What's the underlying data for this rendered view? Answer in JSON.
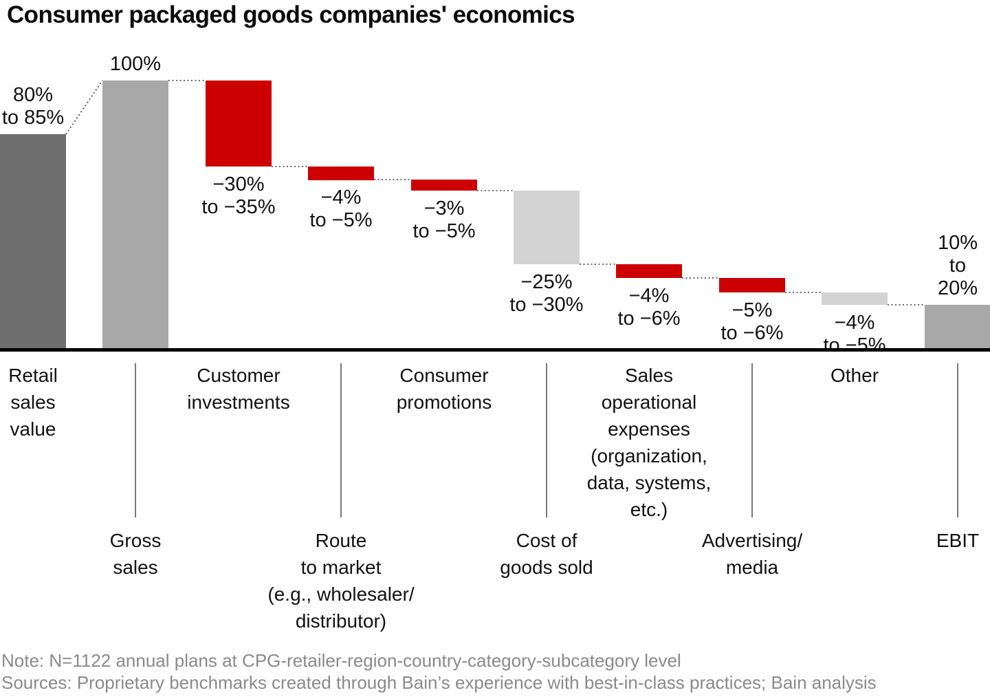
{
  "title": "Consumer packaged goods companies' economics",
  "footer": {
    "note": "Note: N=1122 annual plans at CPG-retailer-region-country-category-subcategory level",
    "sources": "Sources: Proprietary benchmarks created through Bain’s experience with best-in-class practices; Bain analysis"
  },
  "colors": {
    "red": "#cc0000",
    "dark_gray": "#6e6e6e",
    "mid_gray": "#a8a8a8",
    "light_gray": "#d3d3d3",
    "axis": "#000000",
    "tick": "#4d4d4d",
    "connector": "#3a3a3a",
    "note_text": "#8a8a8a",
    "label_text": "#121212"
  },
  "chart_data": {
    "type": "bar",
    "subtype": "waterfall",
    "unit": "% of gross sales",
    "ylim": [
      0,
      100
    ],
    "grid": false,
    "legend": false,
    "title": "Consumer packaged goods companies' economics",
    "bars": [
      {
        "axis_label": "Retail sales value",
        "axis_lines": [
          "Retail",
          "sales",
          "value"
        ],
        "label_row": 1,
        "tick": false,
        "value_label_lines": [
          "80%",
          "to 85%"
        ],
        "value_label_pos": "above",
        "range_text": "80% to 85%",
        "from": 0,
        "to": 80,
        "color_key": "dark_gray"
      },
      {
        "axis_label": "Gross sales",
        "axis_lines": [
          "Gross",
          "sales"
        ],
        "label_row": 2,
        "tick": true,
        "value_label_lines": [
          "100%"
        ],
        "value_label_pos": "above",
        "range_text": "100%",
        "from": 0,
        "to": 100,
        "color_key": "mid_gray"
      },
      {
        "axis_label": "Customer investments",
        "axis_lines": [
          "Customer",
          "investments"
        ],
        "label_row": 1,
        "tick": false,
        "value_label_lines": [
          "−30%",
          "to −35%"
        ],
        "value_label_pos": "below",
        "range_text": "−30% to −35%",
        "from": 100,
        "to": 68,
        "color_key": "red"
      },
      {
        "axis_label": "Route to market (e.g., wholesaler/distributor)",
        "axis_lines": [
          "Route",
          "to market",
          "(e.g., wholesaler/",
          "distributor)"
        ],
        "label_row": 2,
        "tick": true,
        "value_label_lines": [
          "−4%",
          "to −5%"
        ],
        "value_label_pos": "below",
        "range_text": "−4% to −5%",
        "from": 68,
        "to": 63,
        "color_key": "red"
      },
      {
        "axis_label": "Consumer promotions",
        "axis_lines": [
          "Consumer",
          "promotions"
        ],
        "label_row": 1,
        "tick": false,
        "value_label_lines": [
          "−3%",
          "to −5%"
        ],
        "value_label_pos": "below",
        "range_text": "−3% to −5%",
        "from": 63,
        "to": 59,
        "color_key": "red"
      },
      {
        "axis_label": "Cost of goods sold",
        "axis_lines": [
          "Cost of",
          "goods sold"
        ],
        "label_row": 2,
        "tick": true,
        "value_label_lines": [
          "−25%",
          "to −30%"
        ],
        "value_label_pos": "below",
        "range_text": "−25% to −30%",
        "from": 59,
        "to": 31.5,
        "color_key": "light_gray"
      },
      {
        "axis_label": "Sales operational expenses (organization, data, systems, etc.)",
        "axis_lines": [
          "Sales",
          "operational",
          "expenses",
          "(organization,",
          "data, systems,",
          "etc.)"
        ],
        "label_row": 1,
        "tick": false,
        "value_label_lines": [
          "−4%",
          "to −6%"
        ],
        "value_label_pos": "below",
        "range_text": "−4% to −6%",
        "from": 31.5,
        "to": 26.5,
        "color_key": "red"
      },
      {
        "axis_label": "Advertising/media",
        "axis_lines": [
          "Advertising/",
          "media"
        ],
        "label_row": 2,
        "tick": true,
        "value_label_lines": [
          "−5%",
          "to −6%"
        ],
        "value_label_pos": "below",
        "range_text": "−5% to −6%",
        "from": 26.5,
        "to": 21,
        "color_key": "red"
      },
      {
        "axis_label": "Other",
        "axis_lines": [
          "Other"
        ],
        "label_row": 1,
        "tick": false,
        "value_label_lines": [
          "−4%",
          "to −5%"
        ],
        "value_label_pos": "below",
        "range_text": "−4% to −5%",
        "from": 21,
        "to": 16.5,
        "color_key": "light_gray"
      },
      {
        "axis_label": "EBIT",
        "axis_lines": [
          "EBIT"
        ],
        "label_row": 2,
        "tick": true,
        "value_label_lines": [
          "10%",
          "to",
          "20%"
        ],
        "value_label_pos": "above",
        "range_text": "10% to 20%",
        "from": 16.5,
        "to": 0,
        "color_key": "mid_gray"
      }
    ]
  }
}
